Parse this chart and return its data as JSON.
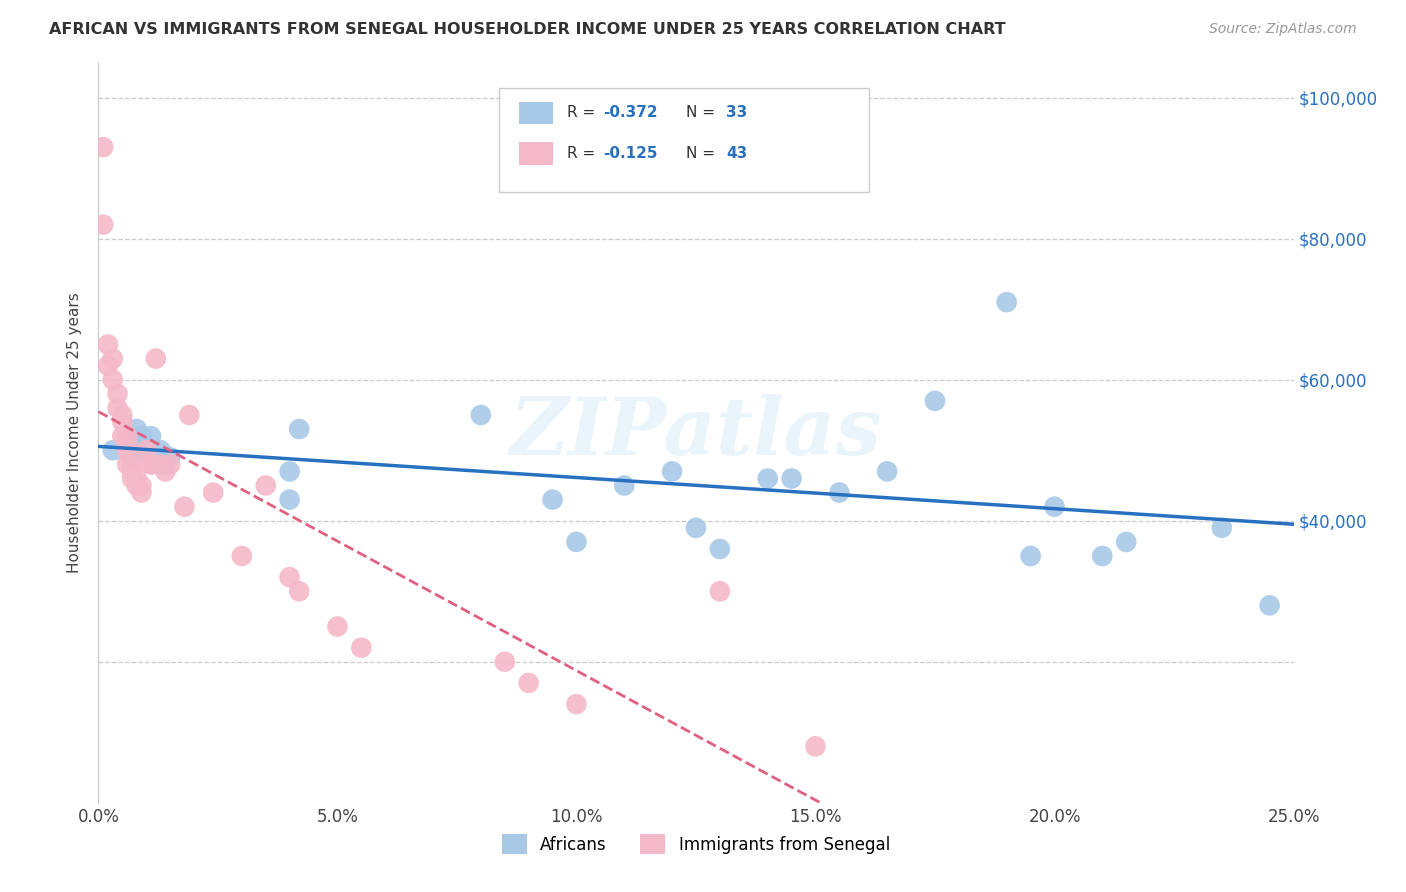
{
  "title": "AFRICAN VS IMMIGRANTS FROM SENEGAL HOUSEHOLDER INCOME UNDER 25 YEARS CORRELATION CHART",
  "source": "Source: ZipAtlas.com",
  "ylabel": "Householder Income Under 25 years",
  "xlim": [
    0.0,
    0.25
  ],
  "ylim": [
    0,
    105000
  ],
  "legend_r_african": "-0.372",
  "legend_n_african": "33",
  "legend_r_senegal": "-0.125",
  "legend_n_senegal": "43",
  "african_color": "#a8c8e8",
  "senegal_color": "#f4b8c8",
  "african_line_color": "#2870c0",
  "senegal_line_color": "#e06080",
  "background_color": "#ffffff",
  "watermark": "ZIPatlas",
  "grid_color": "#cccccc",
  "african_points_x": [
    0.003,
    0.007,
    0.008,
    0.008,
    0.009,
    0.01,
    0.011,
    0.013,
    0.013,
    0.014,
    0.015,
    0.04,
    0.04,
    0.042,
    0.08,
    0.095,
    0.1,
    0.11,
    0.12,
    0.125,
    0.13,
    0.14,
    0.145,
    0.155,
    0.165,
    0.175,
    0.19,
    0.195,
    0.2,
    0.21,
    0.215,
    0.235,
    0.245
  ],
  "african_points_y": [
    50000,
    49000,
    51000,
    53000,
    52000,
    50000,
    52000,
    48000,
    50000,
    48000,
    49000,
    47000,
    43000,
    53000,
    55000,
    43000,
    37000,
    45000,
    47000,
    39000,
    36000,
    46000,
    46000,
    44000,
    47000,
    57000,
    71000,
    35000,
    42000,
    35000,
    37000,
    39000,
    28000
  ],
  "senegal_points_x": [
    0.001,
    0.001,
    0.002,
    0.002,
    0.003,
    0.003,
    0.004,
    0.004,
    0.005,
    0.005,
    0.005,
    0.006,
    0.006,
    0.006,
    0.006,
    0.007,
    0.007,
    0.007,
    0.008,
    0.008,
    0.009,
    0.009,
    0.01,
    0.011,
    0.011,
    0.012,
    0.013,
    0.014,
    0.015,
    0.018,
    0.019,
    0.024,
    0.03,
    0.035,
    0.04,
    0.042,
    0.05,
    0.055,
    0.085,
    0.09,
    0.1,
    0.13,
    0.15
  ],
  "senegal_points_y": [
    93000,
    82000,
    65000,
    62000,
    63000,
    60000,
    58000,
    56000,
    55000,
    54000,
    52000,
    52000,
    51000,
    50000,
    48000,
    48000,
    47000,
    46000,
    46000,
    45000,
    45000,
    44000,
    50000,
    48000,
    48000,
    63000,
    48000,
    47000,
    48000,
    42000,
    55000,
    44000,
    35000,
    45000,
    32000,
    30000,
    25000,
    22000,
    20000,
    17000,
    14000,
    30000,
    8000
  ]
}
